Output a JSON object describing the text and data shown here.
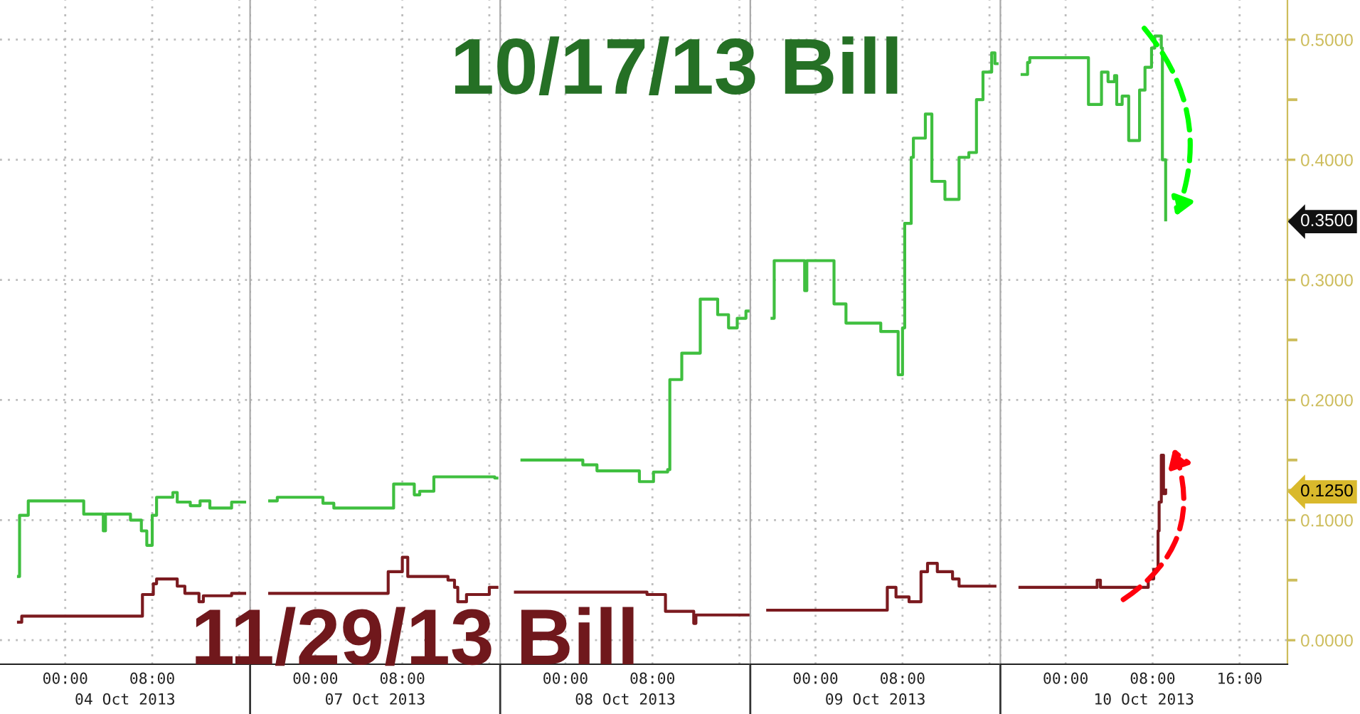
{
  "chart_data": [
    {
      "type": "step",
      "xlabel": "04 Oct 2013",
      "xlim": [
        -6,
        17
      ],
      "xticks": [
        {
          "value": 0,
          "label": "00:00"
        },
        {
          "value": 8,
          "label": "08:00"
        },
        {
          "value": 16,
          "label": null
        }
      ],
      "ylim": [
        -0.02,
        0.533
      ],
      "yticks": [
        0,
        0.1,
        0.2,
        0.3,
        0.4,
        0.5
      ],
      "tick_labels": "x",
      "grid": true,
      "line_style": "solid",
      "series": [
        {
          "color": "#3fbf3f",
          "x": [
            -4.3,
            -4.2,
            -3.4,
            1.7,
            3.5,
            3.7,
            6.0,
            7.0,
            7.5,
            8.0,
            8.4,
            9.9,
            10.3,
            11.5,
            12.4,
            13.3,
            15.3,
            16.5
          ],
          "values": [
            0.053,
            0.104,
            0.116,
            0.105,
            0.091,
            0.105,
            0.1,
            0.091,
            0.079,
            0.104,
            0.119,
            0.123,
            0.115,
            0.112,
            0.116,
            0.11,
            0.115,
            0.115
          ]
        },
        {
          "color": "#7b1a1f",
          "x": [
            -4.3,
            -4.0,
            7.1,
            8.1,
            8.4,
            10.3,
            11.0,
            12.3,
            12.7,
            15.3,
            16.5
          ],
          "values": [
            0.015,
            0.02,
            0.038,
            0.047,
            0.051,
            0.045,
            0.039,
            0.032,
            0.037,
            0.039,
            0.039
          ]
        }
      ]
    },
    {
      "type": "step",
      "xlabel": "07 Oct 2013",
      "xlim": [
        -6,
        17
      ],
      "xticks": [
        {
          "value": -6,
          "label": null
        },
        {
          "value": 0,
          "label": "00:00"
        },
        {
          "value": 8,
          "label": "08:00"
        },
        {
          "value": 16,
          "label": null
        }
      ],
      "ylim": [
        -0.02,
        0.533
      ],
      "yticks": [
        0,
        0.1,
        0.2,
        0.3,
        0.4,
        0.5
      ],
      "tick_labels": "x",
      "grid": true,
      "line_style": "solid",
      "series": [
        {
          "color": "#3fbf3f",
          "x": [
            -4.2,
            -3.5,
            0.7,
            1.7,
            7.2,
            9.1,
            9.6,
            10.9,
            16.5,
            16.7
          ],
          "values": [
            0.116,
            0.119,
            0.114,
            0.11,
            0.13,
            0.121,
            0.124,
            0.136,
            0.135,
            0.135
          ]
        },
        {
          "name": "11/29/13 Bill",
          "color": "#7b1a1f",
          "x": [
            -4.2,
            6.7,
            8.0,
            8.5,
            12.2,
            12.8,
            13.1,
            13.9,
            16.0,
            16.7
          ],
          "values": [
            0.039,
            0.057,
            0.069,
            0.053,
            0.05,
            0.044,
            0.032,
            0.038,
            0.044,
            0.044
          ]
        }
      ]
    },
    {
      "type": "step",
      "xlabel": "08 Oct 2013",
      "xlim": [
        -6,
        17
      ],
      "xticks": [
        {
          "value": -6,
          "label": null
        },
        {
          "value": 0,
          "label": "00:00"
        },
        {
          "value": 8,
          "label": "08:00"
        },
        {
          "value": 16,
          "label": null
        }
      ],
      "ylim": [
        -0.02,
        0.533
      ],
      "yticks": [
        0,
        0.1,
        0.2,
        0.3,
        0.4,
        0.5
      ],
      "tick_labels": "x",
      "grid": true,
      "line_style": "solid",
      "series": [
        {
          "color": "#3fbf3f",
          "x": [
            -4.0,
            1.6,
            2.9,
            6.8,
            8.1,
            9.4,
            9.6,
            10.7,
            12.4,
            14.0,
            15.0,
            15.8,
            16.6,
            16.9
          ],
          "values": [
            0.15,
            0.146,
            0.141,
            0.132,
            0.14,
            0.142,
            0.217,
            0.239,
            0.284,
            0.271,
            0.26,
            0.268,
            0.274,
            0.274
          ]
        },
        {
          "color": "#7b1a1f",
          "x": [
            -4.6,
            7.5,
            9.2,
            11.8,
            12.0,
            16.9
          ],
          "values": [
            0.04,
            0.038,
            0.024,
            0.014,
            0.021,
            0.021
          ]
        }
      ]
    },
    {
      "type": "step",
      "xlabel": "09 Oct 2013",
      "xlim": [
        -6,
        17
      ],
      "xticks": [
        {
          "value": -6,
          "label": null
        },
        {
          "value": 0,
          "label": "00:00"
        },
        {
          "value": 8,
          "label": "08:00"
        },
        {
          "value": 16,
          "label": null
        }
      ],
      "ylim": [
        -0.02,
        0.533
      ],
      "yticks": [
        0,
        0.1,
        0.2,
        0.3,
        0.4,
        0.5
      ],
      "tick_labels": "x",
      "grid": true,
      "line_style": "solid",
      "series": [
        {
          "name": "10/17/13 Bill",
          "color": "#3fbf3f",
          "x": [
            -4.0,
            -3.8,
            -1.0,
            -0.8,
            1.7,
            2.8,
            6.0,
            7.6,
            8.0,
            8.2,
            8.8,
            9.0,
            10.1,
            10.7,
            11.9,
            13.2,
            14.1,
            14.8,
            15.4,
            16.2,
            16.5,
            16.7
          ],
          "values": [
            0.268,
            0.316,
            0.291,
            0.316,
            0.28,
            0.264,
            0.257,
            0.221,
            0.26,
            0.347,
            0.402,
            0.418,
            0.438,
            0.382,
            0.367,
            0.402,
            0.406,
            0.45,
            0.473,
            0.489,
            0.48,
            0.48
          ]
        },
        {
          "color": "#7b1a1f",
          "x": [
            -4.4,
            6.6,
            7.4,
            8.6,
            9.7,
            10.3,
            11.2,
            12.6,
            13.2,
            16.5
          ],
          "values": [
            0.025,
            0.044,
            0.036,
            0.032,
            0.057,
            0.064,
            0.057,
            0.051,
            0.045,
            0.045
          ]
        }
      ]
    },
    {
      "type": "step",
      "xlabel": "10 Oct 2013",
      "xlim": [
        -6,
        20.4
      ],
      "xticks": [
        {
          "value": -6,
          "label": null
        },
        {
          "value": 0,
          "label": "00:00"
        },
        {
          "value": 8,
          "label": "08:00"
        },
        {
          "value": 16,
          "label": "16:00"
        }
      ],
      "ylim": [
        -0.02,
        0.533
      ],
      "yticks": [
        {
          "value": 0,
          "label": "0.0000"
        },
        {
          "value": 0.05,
          "label": null
        },
        {
          "value": 0.1,
          "label": "0.1000"
        },
        {
          "value": 0.125,
          "label": "0.1250"
        },
        {
          "value": 0.15,
          "label": null
        },
        {
          "value": 0.2,
          "label": "0.2000"
        },
        {
          "value": 0.25,
          "label": null
        },
        {
          "value": 0.3,
          "label": "0.3000"
        },
        {
          "value": 0.35,
          "label": "0.3500"
        },
        {
          "value": 0.4,
          "label": "0.4000"
        },
        {
          "value": 0.45,
          "label": null
        },
        {
          "value": 0.5,
          "label": "0.5000"
        }
      ],
      "grid": true,
      "line_style": "solid",
      "series": [
        {
          "color": "#3fbf3f",
          "x": [
            -4.0,
            -3.5,
            -3.3,
            2.1,
            3.3,
            3.9,
            4.5,
            4.7,
            5.2,
            5.8,
            6.8,
            7.3,
            7.9,
            8.2,
            8.8,
            8.9,
            9.2
          ],
          "values": [
            0.471,
            0.481,
            0.485,
            0.446,
            0.473,
            0.465,
            0.47,
            0.446,
            0.453,
            0.416,
            0.458,
            0.477,
            0.493,
            0.503,
            0.493,
            0.4,
            0.35
          ]
        },
        {
          "color": "#7b1a1f",
          "x": [
            -4.2,
            2.9,
            3.2,
            7.6,
            8.1,
            8.5,
            8.6,
            8.8,
            9.0,
            9.2
          ],
          "values": [
            0.044,
            0.05,
            0.044,
            0.051,
            0.059,
            0.091,
            0.115,
            0.154,
            0.122,
            0.125
          ]
        }
      ]
    }
  ]
}
